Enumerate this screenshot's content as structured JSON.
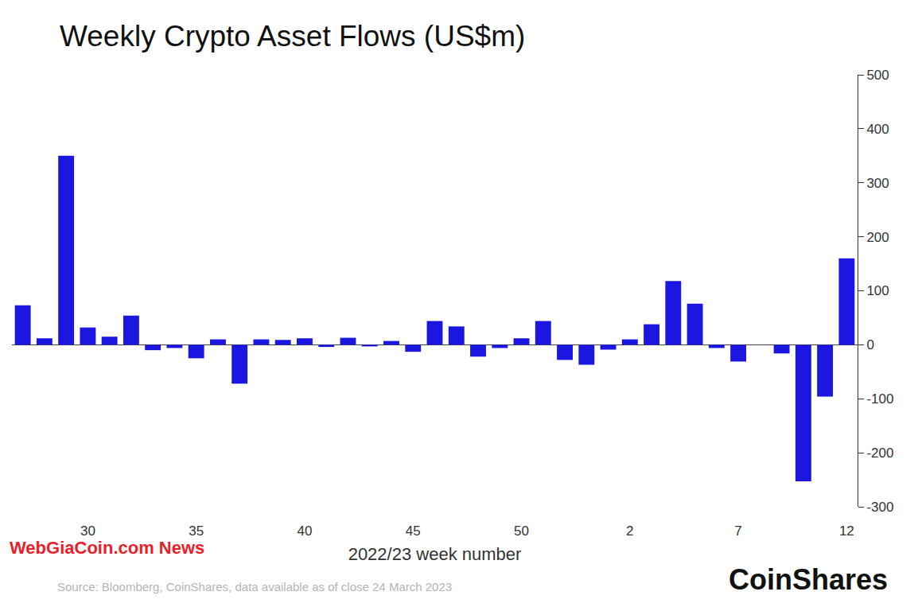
{
  "chart_data": {
    "type": "bar",
    "title": "Weekly Crypto Asset Flows (US$m)",
    "x_label": "2022/23 week number",
    "source": "Source: Bloomberg, CoinShares, data available as of close 24 March 2023",
    "brand": "CoinShares",
    "watermark": "WebGiaCoin.com News",
    "categories": [
      null,
      null,
      null,
      "30",
      null,
      null,
      null,
      null,
      "35",
      null,
      null,
      null,
      null,
      "40",
      null,
      null,
      null,
      null,
      "45",
      null,
      null,
      null,
      null,
      "50",
      null,
      null,
      null,
      null,
      "2",
      null,
      null,
      null,
      null,
      "7",
      null,
      null,
      null,
      null,
      "12"
    ],
    "values": [
      73,
      12,
      350,
      32,
      15,
      54,
      -10,
      -6,
      -25,
      10,
      -72,
      10,
      9,
      12,
      -4,
      13,
      -3,
      7,
      -13,
      44,
      34,
      -22,
      -6,
      12,
      44,
      -28,
      -37,
      -9,
      10,
      38,
      118,
      76,
      -6,
      -31,
      0,
      -16,
      -253,
      -96,
      160
    ],
    "color": "#1c17e0",
    "ylim": [
      -300,
      500
    ],
    "yticks": [
      -300,
      -200,
      -100,
      0,
      100,
      200,
      300,
      400,
      500
    ],
    "grid": false
  }
}
